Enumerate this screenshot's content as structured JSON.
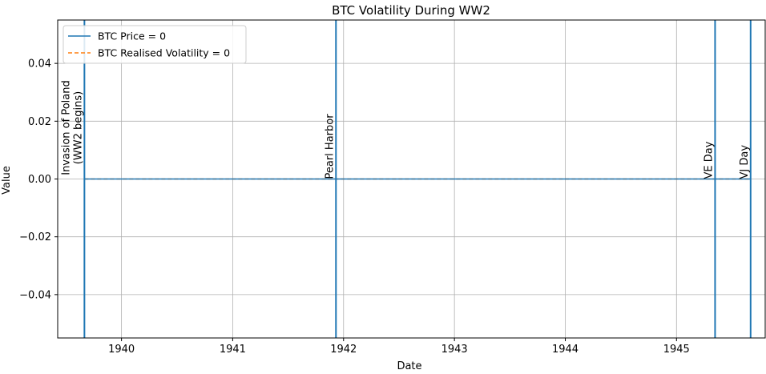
{
  "chart_data": {
    "type": "line",
    "title": "BTC Volatility During WW2",
    "xlabel": "Date",
    "ylabel": "Value",
    "x_axis_type": "date",
    "xlim": [
      "1939-06-05",
      "1945-10-20"
    ],
    "ylim": [
      -0.055,
      0.055
    ],
    "x_ticks": [
      {
        "date": "1940-01-01",
        "label": "1940"
      },
      {
        "date": "1941-01-01",
        "label": "1941"
      },
      {
        "date": "1942-01-01",
        "label": "1942"
      },
      {
        "date": "1943-01-01",
        "label": "1943"
      },
      {
        "date": "1944-01-01",
        "label": "1944"
      },
      {
        "date": "1945-01-01",
        "label": "1945"
      }
    ],
    "y_ticks": [
      {
        "value": 0.04,
        "label": "0.04"
      },
      {
        "value": 0.02,
        "label": "0.02"
      },
      {
        "value": 0.0,
        "label": "0.00"
      },
      {
        "value": -0.02,
        "label": "−0.02"
      },
      {
        "value": -0.04,
        "label": "−0.04"
      }
    ],
    "grid": true,
    "legend_position": "top-left",
    "series": [
      {
        "name": "BTC Price = 0",
        "x": [
          "1939-09-01",
          "1945-09-02"
        ],
        "y": [
          0,
          0
        ],
        "color": "#1f77b4",
        "style": "solid"
      },
      {
        "name": "BTC Realised Volatility = 0",
        "x": [
          "1939-09-01",
          "1945-09-02"
        ],
        "y": [
          0,
          0
        ],
        "color": "#ff7f0e",
        "style": "dashed"
      }
    ],
    "events": [
      {
        "date": "1939-09-01",
        "label": "Invasion of Poland\n(WW2 begins)"
      },
      {
        "date": "1941-12-07",
        "label": "Pearl Harbor"
      },
      {
        "date": "1945-05-08",
        "label": "VE Day"
      },
      {
        "date": "1945-09-02",
        "label": "VJ Day"
      }
    ],
    "colors": {
      "event_line": "#1f77b4",
      "grid": "#b0b0b0"
    }
  }
}
